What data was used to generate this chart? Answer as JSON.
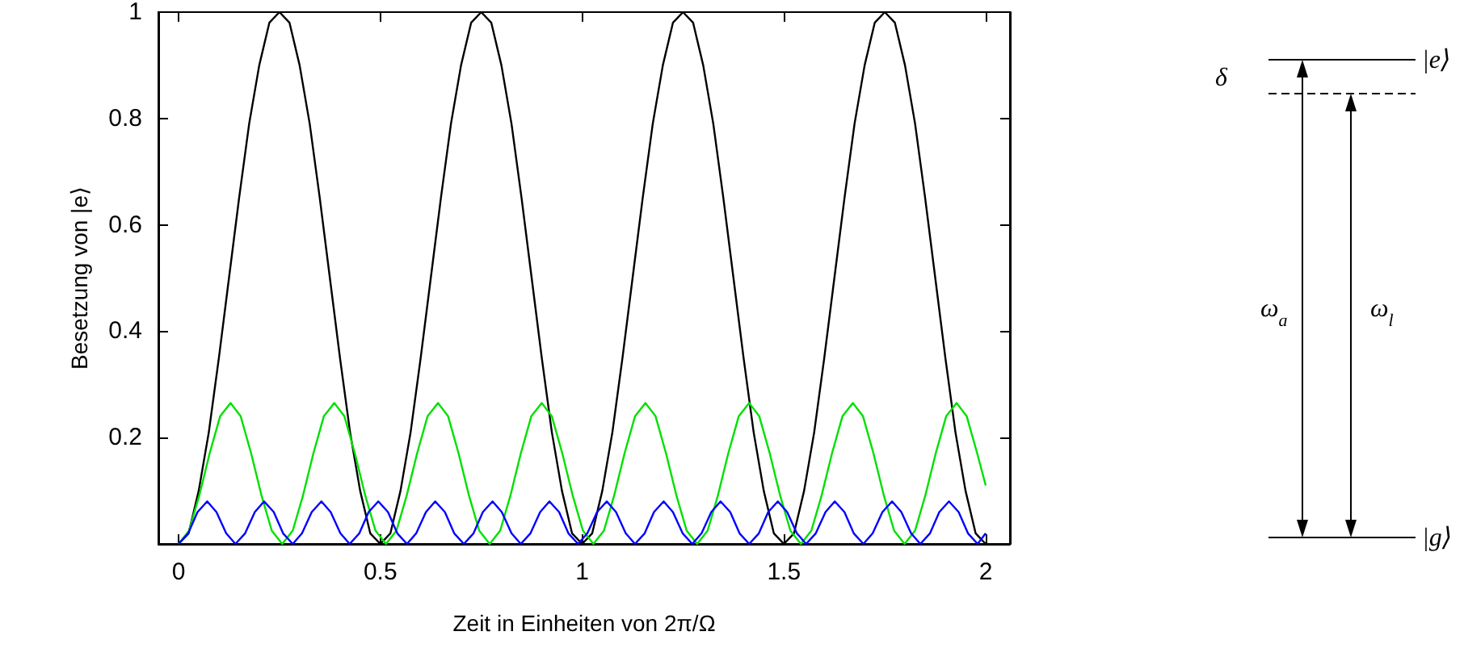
{
  "chart_data": {
    "type": "line",
    "xlabel": "Zeit in Einheiten von 2π/Ω",
    "ylabel": "Besetzung von |e⟩",
    "xlim": [
      -0.05,
      2.06
    ],
    "xticks": [
      0,
      0.5,
      1,
      1.5,
      2
    ],
    "ylim": [
      0,
      1
    ],
    "yticks": [
      0.2,
      0.4,
      0.6,
      0.8,
      1
    ],
    "grid": false,
    "marker": "none",
    "line_style": "solid",
    "annotations": [
      "δ",
      "|e⟩",
      "|g⟩",
      "ω$_{a}$",
      "ω$_{l}$"
    ],
    "series": [
      {
        "color": "#000000",
        "x": [
          0,
          0.025,
          0.05,
          0.075,
          0.1,
          0.125,
          0.15,
          0.175,
          0.2,
          0.225,
          0.25,
          0.275,
          0.3,
          0.325,
          0.35,
          0.375,
          0.4,
          0.425,
          0.45,
          0.475,
          0.5,
          0.525,
          0.55,
          0.575,
          0.6,
          0.625,
          0.65,
          0.675,
          0.7,
          0.725,
          0.75,
          0.775,
          0.8,
          0.825,
          0.85,
          0.875,
          0.9,
          0.925,
          0.95,
          0.975,
          1,
          1.025,
          1.05,
          1.075,
          1.1,
          1.125,
          1.15,
          1.175,
          1.2,
          1.225,
          1.25,
          1.275,
          1.3,
          1.325,
          1.35,
          1.375,
          1.4,
          1.425,
          1.45,
          1.475,
          1.5,
          1.525,
          1.55,
          1.575,
          1.6,
          1.625,
          1.65,
          1.675,
          1.7,
          1.725,
          1.75,
          1.775,
          1.8,
          1.825,
          1.85,
          1.875,
          1.9,
          1.925,
          1.95,
          1.975,
          2
        ],
        "values": [
          0,
          0.02,
          0.1,
          0.21,
          0.35,
          0.5,
          0.65,
          0.79,
          0.9,
          0.98,
          1,
          0.98,
          0.9,
          0.79,
          0.65,
          0.5,
          0.35,
          0.21,
          0.1,
          0.02,
          0,
          0.02,
          0.1,
          0.21,
          0.35,
          0.5,
          0.65,
          0.79,
          0.9,
          0.98,
          1,
          0.98,
          0.9,
          0.79,
          0.65,
          0.5,
          0.35,
          0.21,
          0.1,
          0.02,
          0,
          0.02,
          0.1,
          0.21,
          0.35,
          0.5,
          0.65,
          0.79,
          0.9,
          0.98,
          1,
          0.98,
          0.9,
          0.79,
          0.65,
          0.5,
          0.35,
          0.21,
          0.1,
          0.02,
          0,
          0.02,
          0.1,
          0.21,
          0.35,
          0.5,
          0.65,
          0.79,
          0.9,
          0.98,
          1,
          0.98,
          0.9,
          0.79,
          0.65,
          0.5,
          0.35,
          0.21,
          0.1,
          0.02,
          0
        ]
      },
      {
        "color": "#00e000",
        "x": [
          0,
          0.026,
          0.051,
          0.077,
          0.103,
          0.129,
          0.154,
          0.18,
          0.206,
          0.231,
          0.257,
          0.283,
          0.308,
          0.334,
          0.36,
          0.386,
          0.411,
          0.437,
          0.463,
          0.488,
          0.514,
          0.54,
          0.565,
          0.591,
          0.617,
          0.643,
          0.668,
          0.694,
          0.72,
          0.745,
          0.771,
          0.797,
          0.822,
          0.848,
          0.874,
          0.9,
          0.925,
          0.951,
          0.977,
          1.002,
          1.028,
          1.054,
          1.079,
          1.105,
          1.131,
          1.157,
          1.182,
          1.208,
          1.234,
          1.259,
          1.285,
          1.311,
          1.336,
          1.362,
          1.388,
          1.414,
          1.439,
          1.465,
          1.491,
          1.516,
          1.542,
          1.568,
          1.593,
          1.619,
          1.645,
          1.671,
          1.696,
          1.722,
          1.748,
          1.773,
          1.799,
          1.825,
          1.85,
          1.876,
          1.902,
          1.928,
          1.953,
          1.979,
          2
        ],
        "values": [
          0,
          0.025,
          0.09,
          0.17,
          0.24,
          0.265,
          0.24,
          0.17,
          0.09,
          0.025,
          0,
          0.025,
          0.09,
          0.17,
          0.24,
          0.265,
          0.24,
          0.17,
          0.09,
          0.025,
          0,
          0.025,
          0.09,
          0.17,
          0.24,
          0.265,
          0.24,
          0.17,
          0.09,
          0.025,
          0,
          0.025,
          0.09,
          0.17,
          0.24,
          0.265,
          0.24,
          0.17,
          0.09,
          0.025,
          0,
          0.025,
          0.09,
          0.17,
          0.24,
          0.265,
          0.24,
          0.17,
          0.09,
          0.025,
          0,
          0.025,
          0.09,
          0.17,
          0.24,
          0.265,
          0.24,
          0.17,
          0.09,
          0.025,
          0,
          0.025,
          0.09,
          0.17,
          0.24,
          0.265,
          0.24,
          0.17,
          0.09,
          0.025,
          0,
          0.025,
          0.09,
          0.17,
          0.24,
          0.265,
          0.24,
          0.17,
          0.11
        ]
      },
      {
        "color": "#0000ff",
        "x": [
          0,
          0.024,
          0.047,
          0.071,
          0.094,
          0.118,
          0.141,
          0.165,
          0.189,
          0.212,
          0.236,
          0.259,
          0.283,
          0.306,
          0.33,
          0.354,
          0.377,
          0.401,
          0.424,
          0.448,
          0.471,
          0.495,
          0.519,
          0.542,
          0.566,
          0.589,
          0.613,
          0.636,
          0.66,
          0.683,
          0.707,
          0.731,
          0.754,
          0.778,
          0.801,
          0.825,
          0.848,
          0.872,
          0.896,
          0.919,
          0.943,
          0.966,
          0.99,
          1.013,
          1.037,
          1.061,
          1.084,
          1.108,
          1.131,
          1.155,
          1.178,
          1.202,
          1.225,
          1.249,
          1.273,
          1.296,
          1.32,
          1.343,
          1.367,
          1.39,
          1.414,
          1.438,
          1.461,
          1.485,
          1.508,
          1.532,
          1.555,
          1.579,
          1.603,
          1.626,
          1.65,
          1.673,
          1.697,
          1.72,
          1.744,
          1.768,
          1.791,
          1.815,
          1.838,
          1.862,
          1.885,
          1.909,
          1.933,
          1.956,
          1.98,
          2
        ],
        "values": [
          0,
          0.02,
          0.06,
          0.08,
          0.06,
          0.02,
          0,
          0.02,
          0.06,
          0.08,
          0.06,
          0.02,
          0,
          0.02,
          0.06,
          0.08,
          0.06,
          0.02,
          0,
          0.02,
          0.06,
          0.08,
          0.06,
          0.02,
          0,
          0.02,
          0.06,
          0.08,
          0.06,
          0.02,
          0,
          0.02,
          0.06,
          0.08,
          0.06,
          0.02,
          0,
          0.02,
          0.06,
          0.08,
          0.06,
          0.02,
          0,
          0.02,
          0.06,
          0.08,
          0.06,
          0.02,
          0,
          0.02,
          0.06,
          0.08,
          0.06,
          0.02,
          0,
          0.02,
          0.06,
          0.08,
          0.06,
          0.02,
          0,
          0.02,
          0.06,
          0.08,
          0.06,
          0.02,
          0,
          0.02,
          0.06,
          0.08,
          0.06,
          0.02,
          0,
          0.02,
          0.06,
          0.08,
          0.06,
          0.02,
          0,
          0.02,
          0.06,
          0.08,
          0.06,
          0.02,
          0,
          0.02
        ]
      }
    ]
  }
}
